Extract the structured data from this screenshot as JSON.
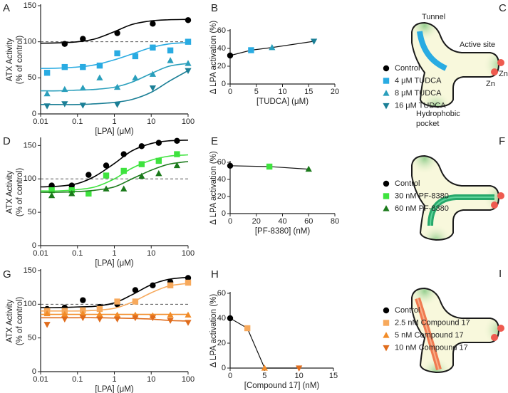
{
  "chart_data": [
    {
      "type": "scatter",
      "panel": "A",
      "xscale": "log",
      "xlim": [
        0.01,
        100
      ],
      "xticks": [
        0.01,
        0.1,
        1,
        10,
        100
      ],
      "ylim": [
        0,
        150
      ],
      "yticks": [
        0,
        50,
        100,
        150
      ],
      "xlabel": "[LPA] (μM)",
      "ylabel": [
        "ATX Activity",
        "(% of control)"
      ],
      "reference_line": 100,
      "curve_x": [
        0.01,
        0.03,
        0.1,
        0.3,
        1,
        3,
        10,
        30,
        100
      ],
      "series": [
        {
          "color": "#000000",
          "marker": "circle",
          "x": [
            0.045,
            0.14,
            1.2,
            11,
            100
          ],
          "values": [
            97,
            104,
            112,
            125,
            130
          ],
          "curve": [
            98,
            98.5,
            100,
            104,
            114,
            124,
            129,
            130.5,
            131
          ]
        },
        {
          "color": "#29abe2",
          "marker": "square",
          "x": [
            0.015,
            0.045,
            0.14,
            0.4,
            1.2,
            3.7,
            11,
            33,
            100
          ],
          "values": [
            57,
            65,
            65,
            67,
            84,
            80,
            92,
            88,
            100
          ],
          "curve": [
            63,
            63.5,
            65,
            68,
            75,
            83,
            92,
            97,
            99
          ]
        },
        {
          "color": "#2a9fbc",
          "marker": "triangle",
          "x": [
            0.015,
            0.045,
            0.14,
            0.4,
            1.2,
            3.7,
            11,
            33,
            100
          ],
          "values": [
            28,
            34,
            36,
            50,
            37,
            50,
            55,
            74,
            70
          ],
          "curve": [
            32,
            32,
            33,
            34,
            37,
            44,
            56,
            66,
            70
          ]
        },
        {
          "color": "#1b7f96",
          "marker": "triangle-down",
          "x": [
            0.015,
            0.045,
            0.14,
            1.2,
            11,
            100
          ],
          "values": [
            11,
            14,
            12,
            13,
            36,
            60
          ],
          "curve": [
            13,
            13,
            13,
            14,
            16,
            20,
            30,
            45,
            60
          ]
        }
      ]
    },
    {
      "type": "line",
      "panel": "B",
      "xlim": [
        0,
        20
      ],
      "xticks": [
        0,
        5,
        10,
        15,
        20
      ],
      "ylim": [
        0,
        60
      ],
      "yticks": [
        0,
        20,
        40,
        60
      ],
      "xlabel": "[TUDCA] (μM)",
      "ylabel": "Δ LPA activation (%)",
      "series": [
        {
          "name": "Control",
          "color": "#000000",
          "marker": "circle",
          "x": [
            0
          ],
          "values": [
            32
          ]
        },
        {
          "name": "4 μM TUDCA",
          "color": "#29abe2",
          "marker": "square",
          "x": [
            4
          ],
          "values": [
            38
          ]
        },
        {
          "name": "8 μM TUDCA",
          "color": "#2a9fbc",
          "marker": "triangle",
          "x": [
            8
          ],
          "values": [
            41
          ]
        },
        {
          "name": "16 μM TUDCA",
          "color": "#1b7f96",
          "marker": "triangle-down",
          "x": [
            16
          ],
          "values": [
            48
          ]
        }
      ]
    },
    {
      "type": "scatter",
      "panel": "D",
      "xscale": "log",
      "xlim": [
        0.01,
        100
      ],
      "xticks": [
        0.01,
        0.1,
        1,
        10,
        100
      ],
      "ylim": [
        0,
        160
      ],
      "yticks": [
        0,
        50,
        100,
        150
      ],
      "xlabel": "[LPA] (μM)",
      "ylabel": [
        "ATX Activity",
        "(% of control)"
      ],
      "reference_line": 100,
      "curve_x": [
        0.01,
        0.03,
        0.1,
        0.3,
        1,
        3,
        10,
        30,
        100
      ],
      "series": [
        {
          "color": "#000000",
          "marker": "circle",
          "x": [
            0.02,
            0.07,
            0.2,
            0.6,
            1.8,
            5.5,
            16,
            50
          ],
          "values": [
            90,
            90,
            106,
            120,
            137,
            149,
            154,
            157
          ],
          "curve": [
            88,
            89,
            93,
            104,
            123,
            142,
            153,
            157,
            158
          ]
        },
        {
          "color": "#3ee33e",
          "marker": "square",
          "x": [
            0.02,
            0.07,
            0.2,
            0.6,
            1.8,
            5.5,
            16,
            50
          ],
          "values": [
            83,
            83,
            78,
            105,
            112,
            122,
            127,
            137
          ],
          "curve": [
            82,
            82,
            84,
            88,
            100,
            116,
            128,
            134,
            136
          ]
        },
        {
          "color": "#1b7a1b",
          "marker": "triangle",
          "x": [
            0.02,
            0.07,
            0.6,
            1.8,
            5.5,
            16,
            50
          ],
          "values": [
            75,
            78,
            85,
            85,
            104,
            108,
            120
          ],
          "curve": [
            80,
            80,
            81,
            83,
            88,
            100,
            113,
            122,
            126
          ]
        }
      ]
    },
    {
      "type": "line",
      "panel": "E",
      "xlim": [
        0,
        80
      ],
      "xticks": [
        0,
        20,
        40,
        60,
        80
      ],
      "ylim": [
        0,
        60
      ],
      "yticks": [
        0,
        20,
        40,
        60
      ],
      "xlabel": "[PF-8380] (nM)",
      "ylabel": "Δ LPA activation (%)",
      "series": [
        {
          "name": "Control",
          "color": "#000000",
          "marker": "circle",
          "x": [
            0
          ],
          "values": [
            56
          ]
        },
        {
          "name": "30 nM PF-8380",
          "color": "#3ee33e",
          "marker": "square",
          "x": [
            30
          ],
          "values": [
            55
          ]
        },
        {
          "name": "60 nM PF-8380",
          "color": "#1b7a1b",
          "marker": "triangle",
          "x": [
            60
          ],
          "values": [
            52
          ]
        }
      ]
    },
    {
      "type": "scatter",
      "panel": "G",
      "xscale": "log",
      "xlim": [
        0.01,
        100
      ],
      "xticks": [
        0.01,
        0.1,
        1,
        10,
        100
      ],
      "ylim": [
        0,
        150
      ],
      "yticks": [
        0,
        50,
        100,
        150
      ],
      "xlabel": "[LPA] (μM)",
      "ylabel": [
        "ATX Activity",
        "(% of control)"
      ],
      "reference_line": 100,
      "curve_x": [
        0.01,
        0.03,
        0.1,
        0.3,
        1,
        3,
        10,
        30,
        100
      ],
      "series": [
        {
          "color": "#000000",
          "marker": "circle",
          "x": [
            0.015,
            0.045,
            0.14,
            0.4,
            1.2,
            3.7,
            11,
            33,
            100
          ],
          "values": [
            93,
            95,
            106,
            96,
            100,
            121,
            128,
            133,
            139
          ],
          "curve": [
            95,
            95,
            96,
            97,
            102,
            114,
            129,
            137,
            140
          ]
        },
        {
          "color": "#f7a95c",
          "marker": "square",
          "x": [
            0.015,
            0.045,
            0.14,
            0.4,
            1.2,
            3.7,
            33,
            100
          ],
          "values": [
            90,
            90,
            91,
            93,
            104,
            104,
            128,
            132
          ],
          "curve": [
            90,
            90,
            90,
            91,
            94,
            103,
            117,
            127,
            131
          ]
        },
        {
          "color": "#f28c28",
          "marker": "triangle",
          "x": [
            0.015,
            0.045,
            0.14,
            0.4,
            1.2,
            3.7,
            11,
            33,
            100
          ],
          "values": [
            86,
            85,
            86,
            85,
            84,
            84,
            83,
            84,
            84
          ],
          "curve": [
            85,
            85,
            85,
            85,
            85,
            85,
            85,
            85,
            85
          ]
        },
        {
          "color": "#e06c1c",
          "marker": "triangle-down",
          "x": [
            0.015,
            0.045,
            0.14,
            0.4,
            1.2,
            3.7,
            11,
            33,
            100
          ],
          "values": [
            70,
            78,
            80,
            78,
            78,
            80,
            80,
            76,
            73
          ],
          "curve": [
            80,
            80,
            80,
            80,
            79.5,
            79,
            78,
            76,
            75
          ]
        }
      ]
    },
    {
      "type": "line",
      "panel": "H",
      "xlim": [
        0,
        15
      ],
      "xticks": [
        0,
        5,
        10,
        15
      ],
      "ylim": [
        0,
        60
      ],
      "yticks": [
        0,
        20,
        40,
        60
      ],
      "xlabel": "[Compound 17] (nM)",
      "ylabel": "Δ LPA activation (%)",
      "series": [
        {
          "name": "Control",
          "color": "#000000",
          "marker": "circle",
          "x": [
            0
          ],
          "values": [
            40
          ]
        },
        {
          "name": "2.5 nM Compound 17",
          "color": "#f7a95c",
          "marker": "square",
          "x": [
            2.5
          ],
          "values": [
            32
          ]
        },
        {
          "name": "5 nM Compound 17",
          "color": "#f28c28",
          "marker": "triangle",
          "x": [
            5
          ],
          "values": [
            0
          ]
        },
        {
          "name": "10 nM Compound 17",
          "color": "#e06c1c",
          "marker": "triangle-down",
          "x": [
            10
          ],
          "values": [
            0
          ]
        }
      ]
    }
  ],
  "diagrams": [
    {
      "panel": "C",
      "labels": {
        "tunnel": "Tunnel",
        "active_site": "Active site",
        "zn_1": "Zn",
        "zn_2": "Zn",
        "pocket": [
          "Hydrophobic",
          "pocket"
        ]
      }
    },
    {
      "panel": "F"
    },
    {
      "panel": "I"
    }
  ]
}
